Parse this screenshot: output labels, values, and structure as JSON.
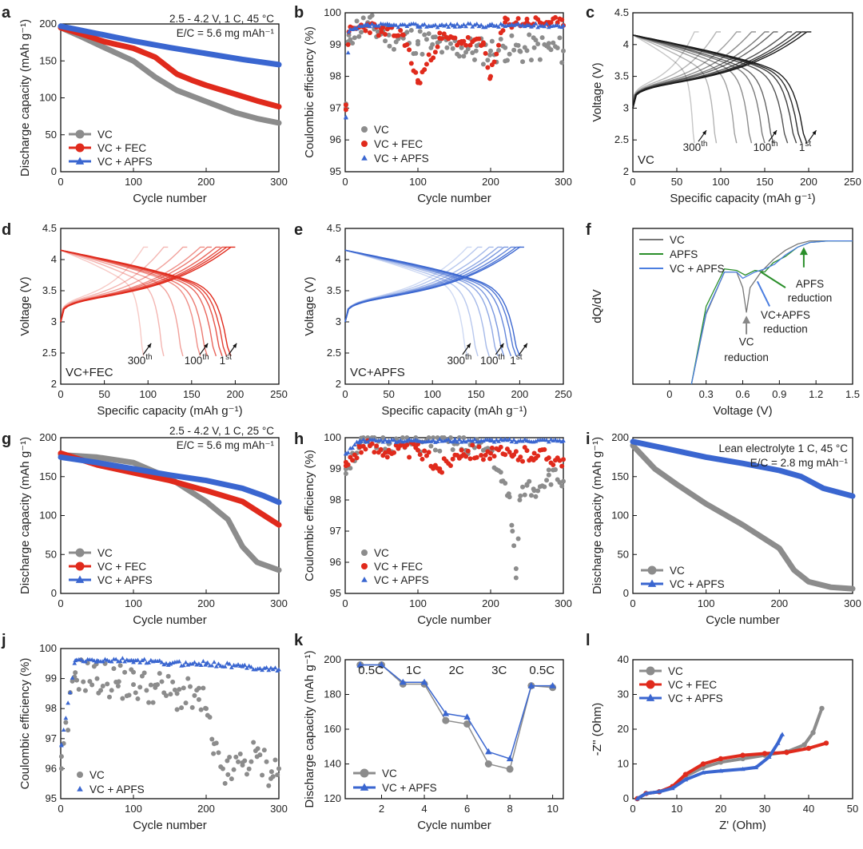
{
  "figure": {
    "colors": {
      "VC": "#8c8c8c",
      "FEC": "#e02a1c",
      "APFS": "#3a66d0",
      "f_VC": "#777777",
      "f_APFS_green": "#2b8f2b",
      "f_VCAPFS_blue": "#4b7ee0"
    }
  },
  "chart_data": [
    {
      "id": "a",
      "type": "line",
      "label": "a",
      "xlabel": "Cycle number",
      "ylabel": "Discharge capacity (mAh g⁻¹)",
      "xlim": [
        0,
        300
      ],
      "ylim": [
        0,
        200
      ],
      "xticks": [
        0,
        100,
        200,
        300
      ],
      "yticks": [
        0,
        50,
        100,
        150,
        200
      ],
      "note": "2.5 - 4.2 V, 1 C, 45 °C",
      "note2": "E/C = 5.6 mg mAh⁻¹",
      "legend": [
        "VC",
        "VC + FEC",
        "VC + APFS"
      ],
      "series": [
        {
          "name": "VC",
          "x": [
            0,
            30,
            60,
            100,
            130,
            160,
            200,
            240,
            270,
            300
          ],
          "values": [
            195,
            182,
            168,
            150,
            128,
            110,
            95,
            80,
            72,
            66
          ]
        },
        {
          "name": "VC + FEC",
          "x": [
            0,
            30,
            60,
            100,
            130,
            160,
            180,
            200,
            240,
            270,
            300
          ],
          "values": [
            195,
            186,
            176,
            167,
            155,
            132,
            124,
            117,
            105,
            96,
            88
          ]
        },
        {
          "name": "VC + APFS",
          "x": [
            0,
            50,
            100,
            150,
            200,
            250,
            300
          ],
          "values": [
            197,
            187,
            177,
            168,
            160,
            152,
            145
          ]
        }
      ]
    },
    {
      "id": "b",
      "type": "scatter",
      "label": "b",
      "xlabel": "Cycle number",
      "ylabel": "Coulombic efficiency (%)",
      "xlim": [
        0,
        300
      ],
      "ylim": [
        95,
        100
      ],
      "xticks": [
        0,
        100,
        200,
        300
      ],
      "yticks": [
        95,
        96,
        97,
        98,
        99,
        100
      ],
      "legend": [
        "VC",
        "VC + FEC",
        "VC + APFS"
      ],
      "series": [
        {
          "name": "VC",
          "x": [
            1,
            5,
            15,
            30,
            45,
            60,
            80,
            100,
            120,
            140,
            160,
            180,
            200,
            220,
            240,
            260,
            280,
            300
          ],
          "values": [
            97.0,
            99.3,
            99.5,
            99.6,
            99.4,
            99.3,
            99.2,
            99.1,
            99.0,
            98.9,
            98.9,
            98.8,
            98.8,
            98.9,
            98.8,
            98.9,
            98.9,
            98.8
          ]
        },
        {
          "name": "VC + FEC",
          "x": [
            1,
            5,
            15,
            30,
            50,
            80,
            100,
            130,
            160,
            190,
            200,
            220,
            250,
            280,
            300
          ],
          "values": [
            97.1,
            99.4,
            99.5,
            99.6,
            99.4,
            99.3,
            97.8,
            99.2,
            99.1,
            99.0,
            98.0,
            99.7,
            99.7,
            99.7,
            99.6
          ]
        },
        {
          "name": "VC + APFS",
          "x": [
            1,
            5,
            15,
            30,
            60,
            100,
            150,
            200,
            250,
            300
          ],
          "values": [
            96.7,
            99.4,
            99.5,
            99.6,
            99.6,
            99.6,
            99.6,
            99.6,
            99.6,
            99.6
          ]
        }
      ]
    },
    {
      "id": "c",
      "type": "line",
      "label": "c",
      "xlabel": "Specific capacity (mAh g⁻¹)",
      "ylabel": "Voltage (V)",
      "xlim": [
        0,
        250
      ],
      "ylim": [
        2.0,
        4.5
      ],
      "xticks": [
        0,
        50,
        100,
        150,
        200,
        250
      ],
      "yticks": [
        2.0,
        2.5,
        3.0,
        3.5,
        4.0,
        4.5
      ],
      "name_tag": "VC",
      "cycles_label": [
        "300",
        "100",
        "1"
      ],
      "cycle_sup": [
        "th",
        "th",
        "st"
      ],
      "capacities": [
        198,
        192,
        186,
        176,
        160,
        150,
        135,
        118,
        95,
        70
      ]
    },
    {
      "id": "d",
      "type": "line",
      "label": "d",
      "xlabel": "Specific capacity (mAh g⁻¹)",
      "ylabel": "Voltage (V)",
      "xlim": [
        0,
        250
      ],
      "ylim": [
        2.0,
        4.5
      ],
      "xticks": [
        0,
        50,
        100,
        150,
        200,
        250
      ],
      "yticks": [
        2.0,
        2.5,
        3.0,
        3.5,
        4.0,
        4.5
      ],
      "name_tag": "VC+FEC",
      "cycles_label": [
        "300",
        "100",
        "1"
      ],
      "cycle_sup": [
        "th",
        "th",
        "st"
      ],
      "capacities": [
        195,
        190,
        185,
        178,
        168,
        160,
        140,
        118,
        95
      ]
    },
    {
      "id": "e",
      "type": "line",
      "label": "e",
      "xlabel": "Specific capacity (mAh g⁻¹)",
      "ylabel": "Voltage (V)",
      "xlim": [
        0,
        250
      ],
      "ylim": [
        2.0,
        4.5
      ],
      "xticks": [
        0,
        50,
        100,
        150,
        200,
        250
      ],
      "yticks": [
        2.0,
        2.5,
        3.0,
        3.5,
        4.0,
        4.5
      ],
      "name_tag": "VC+APFS",
      "cycles_label": [
        "300",
        "100",
        "1"
      ],
      "cycle_sup": [
        "th",
        "th",
        "st"
      ],
      "capacities": [
        200,
        196,
        190,
        182,
        175,
        165,
        152,
        140
      ]
    },
    {
      "id": "f",
      "type": "line",
      "label": "f",
      "xlabel": "Voltage (V)",
      "ylabel": "dQ/dV",
      "xlim": [
        -0.3,
        1.5
      ],
      "ylim": [
        0,
        1
      ],
      "xticks": [
        0.0,
        0.3,
        0.6,
        0.9,
        1.2,
        1.5
      ],
      "legend": [
        "VC",
        "APFS",
        "VC + APFS"
      ],
      "annotations": [
        "APFS",
        "reduction",
        "VC+APFS",
        "reduction",
        "VC",
        "reduction"
      ]
    },
    {
      "id": "g",
      "type": "line",
      "label": "g",
      "xlabel": "Cycle number",
      "ylabel": "Discharge capacity (mAh g⁻¹)",
      "xlim": [
        0,
        300
      ],
      "ylim": [
        0,
        200
      ],
      "xticks": [
        0,
        100,
        200,
        300
      ],
      "yticks": [
        0,
        50,
        100,
        150,
        200
      ],
      "note": "2.5 - 4.2 V, 1 C, 25 °C",
      "note2": "E/C = 5.6 mg mAh⁻¹",
      "legend": [
        "VC",
        "VC + FEC",
        "VC + APFS"
      ],
      "series": [
        {
          "name": "VC",
          "x": [
            0,
            50,
            100,
            150,
            200,
            230,
            250,
            270,
            300
          ],
          "values": [
            178,
            175,
            168,
            148,
            118,
            95,
            60,
            40,
            30
          ]
        },
        {
          "name": "VC + FEC",
          "x": [
            0,
            50,
            100,
            150,
            200,
            250,
            280,
            300
          ],
          "values": [
            180,
            165,
            155,
            145,
            132,
            118,
            100,
            88
          ]
        },
        {
          "name": "VC + APFS",
          "x": [
            0,
            50,
            100,
            150,
            200,
            250,
            280,
            300
          ],
          "values": [
            175,
            168,
            160,
            152,
            145,
            135,
            125,
            117
          ]
        }
      ]
    },
    {
      "id": "h",
      "type": "scatter",
      "label": "h",
      "xlabel": "Cycle number",
      "ylabel": "Coulombic efficiency (%)",
      "xlim": [
        0,
        300
      ],
      "ylim": [
        95,
        100
      ],
      "xticks": [
        0,
        100,
        200,
        300
      ],
      "yticks": [
        95,
        96,
        97,
        98,
        99,
        100
      ],
      "legend": [
        "VC",
        "VC + FEC",
        "VC + APFS"
      ],
      "series": [
        {
          "name": "VC",
          "x": [
            1,
            20,
            60,
            100,
            150,
            200,
            215,
            225,
            230,
            235,
            240,
            250,
            260,
            280,
            300
          ],
          "values": [
            99.0,
            99.8,
            99.8,
            99.8,
            99.8,
            99.6,
            98.6,
            98.2,
            97.0,
            95.5,
            98.0,
            98.5,
            98.3,
            98.8,
            98.6
          ]
        },
        {
          "name": "VC + FEC",
          "x": [
            1,
            20,
            60,
            100,
            130,
            160,
            200,
            230,
            260,
            300
          ],
          "values": [
            99.1,
            99.7,
            99.6,
            99.6,
            99.0,
            99.6,
            99.5,
            99.4,
            99.5,
            99.3
          ]
        },
        {
          "name": "VC + APFS",
          "x": [
            1,
            20,
            60,
            100,
            150,
            200,
            250,
            300
          ],
          "values": [
            99.5,
            99.9,
            99.9,
            99.9,
            99.9,
            99.9,
            99.9,
            99.9
          ]
        }
      ]
    },
    {
      "id": "i",
      "type": "line",
      "label": "i",
      "xlabel": "Cycle number",
      "ylabel": "Discharge capacity (mAh g⁻¹)",
      "xlim": [
        0,
        300
      ],
      "ylim": [
        0,
        200
      ],
      "xticks": [
        0,
        100,
        200,
        300
      ],
      "yticks": [
        0,
        50,
        100,
        150,
        200
      ],
      "note": "Lean electrolyte 1 C, 45 °C",
      "note2": "E/C = 2.8 mg mAh⁻¹",
      "legend": [
        "VC",
        "VC + APFS"
      ],
      "series": [
        {
          "name": "VC",
          "x": [
            0,
            30,
            60,
            100,
            150,
            200,
            220,
            240,
            270,
            300
          ],
          "values": [
            190,
            160,
            140,
            115,
            88,
            58,
            30,
            15,
            8,
            6
          ]
        },
        {
          "name": "VC + APFS",
          "x": [
            0,
            50,
            100,
            150,
            200,
            230,
            260,
            300
          ],
          "values": [
            195,
            185,
            175,
            167,
            158,
            150,
            135,
            125
          ]
        }
      ]
    },
    {
      "id": "j",
      "type": "scatter",
      "label": "j",
      "xlabel": "Cycle number",
      "ylabel": "Coulombic efficiency (%)",
      "xlim": [
        0,
        300
      ],
      "ylim": [
        95,
        100
      ],
      "xticks": [
        0,
        100,
        200,
        300
      ],
      "yticks": [
        95,
        96,
        97,
        98,
        99,
        100
      ],
      "legend": [
        "VC",
        "VC + APFS"
      ],
      "series": [
        {
          "name": "VC",
          "x": [
            1,
            20,
            50,
            80,
            100,
            130,
            160,
            190,
            200,
            210,
            230,
            250,
            270,
            290,
            300
          ],
          "values": [
            96.0,
            99.2,
            99.0,
            98.9,
            98.8,
            98.7,
            98.5,
            98.3,
            98.0,
            96.5,
            95.8,
            96.2,
            96.4,
            95.9,
            96.0
          ]
        },
        {
          "name": "VC + APFS",
          "x": [
            1,
            20,
            50,
            100,
            150,
            200,
            250,
            300
          ],
          "values": [
            96.8,
            99.6,
            99.6,
            99.6,
            99.5,
            99.5,
            99.4,
            99.3
          ]
        }
      ]
    },
    {
      "id": "k",
      "type": "line",
      "label": "k",
      "xlabel": "Cycle number",
      "ylabel": "Discharge capacity (mAh g⁻¹)",
      "xlim": [
        0.3,
        10.5
      ],
      "ylim": [
        120,
        200
      ],
      "xticks": [
        2,
        4,
        6,
        8,
        10
      ],
      "yticks": [
        120,
        140,
        160,
        180,
        200
      ],
      "rate_labels": [
        "0.5C",
        "1C",
        "2C",
        "3C",
        "0.5C"
      ],
      "legend": [
        "VC",
        "VC + APFS"
      ],
      "series": [
        {
          "name": "VC",
          "x": [
            1,
            2,
            3,
            4,
            5,
            6,
            7,
            8,
            9,
            10
          ],
          "values": [
            197,
            197,
            186,
            186,
            165,
            163,
            140,
            137,
            185,
            184
          ]
        },
        {
          "name": "VC + APFS",
          "x": [
            1,
            2,
            3,
            4,
            5,
            6,
            7,
            8,
            9,
            10
          ],
          "values": [
            197,
            197,
            187,
            187,
            169,
            167,
            147,
            143,
            185,
            185
          ]
        }
      ]
    },
    {
      "id": "l",
      "type": "line",
      "label": "l",
      "xlabel": "Z' (Ohm)",
      "ylabel": "-Z'' (Ohm)",
      "xlim": [
        0,
        50
      ],
      "ylim": [
        0,
        40
      ],
      "xticks": [
        0,
        10,
        20,
        30,
        40,
        50
      ],
      "yticks": [
        0,
        10,
        20,
        30,
        40
      ],
      "legend": [
        "VC",
        "VC + FEC",
        "VC + APFS"
      ],
      "series": [
        {
          "name": "VC",
          "x": [
            1,
            3,
            6,
            9,
            12,
            16,
            20,
            25,
            30,
            35,
            39,
            41,
            43
          ],
          "values": [
            0,
            1.5,
            2.0,
            3.5,
            6.5,
            9.0,
            10.5,
            11.5,
            12.5,
            13.5,
            15.5,
            19.0,
            26.0
          ]
        },
        {
          "name": "VC + FEC",
          "x": [
            1,
            3,
            6,
            9,
            12,
            16,
            20,
            25,
            30,
            35,
            40,
            44
          ],
          "values": [
            0,
            1.5,
            2.0,
            3.5,
            7.0,
            10.0,
            11.5,
            12.5,
            13.0,
            13.3,
            14.5,
            16.0
          ]
        },
        {
          "name": "VC + APFS",
          "x": [
            1,
            3,
            6,
            9,
            12,
            16,
            20,
            25,
            28,
            31,
            33,
            34
          ],
          "values": [
            0,
            1.5,
            2.0,
            3.0,
            5.5,
            7.5,
            8.0,
            8.5,
            9.0,
            12.0,
            16.0,
            18.5
          ]
        }
      ]
    }
  ]
}
